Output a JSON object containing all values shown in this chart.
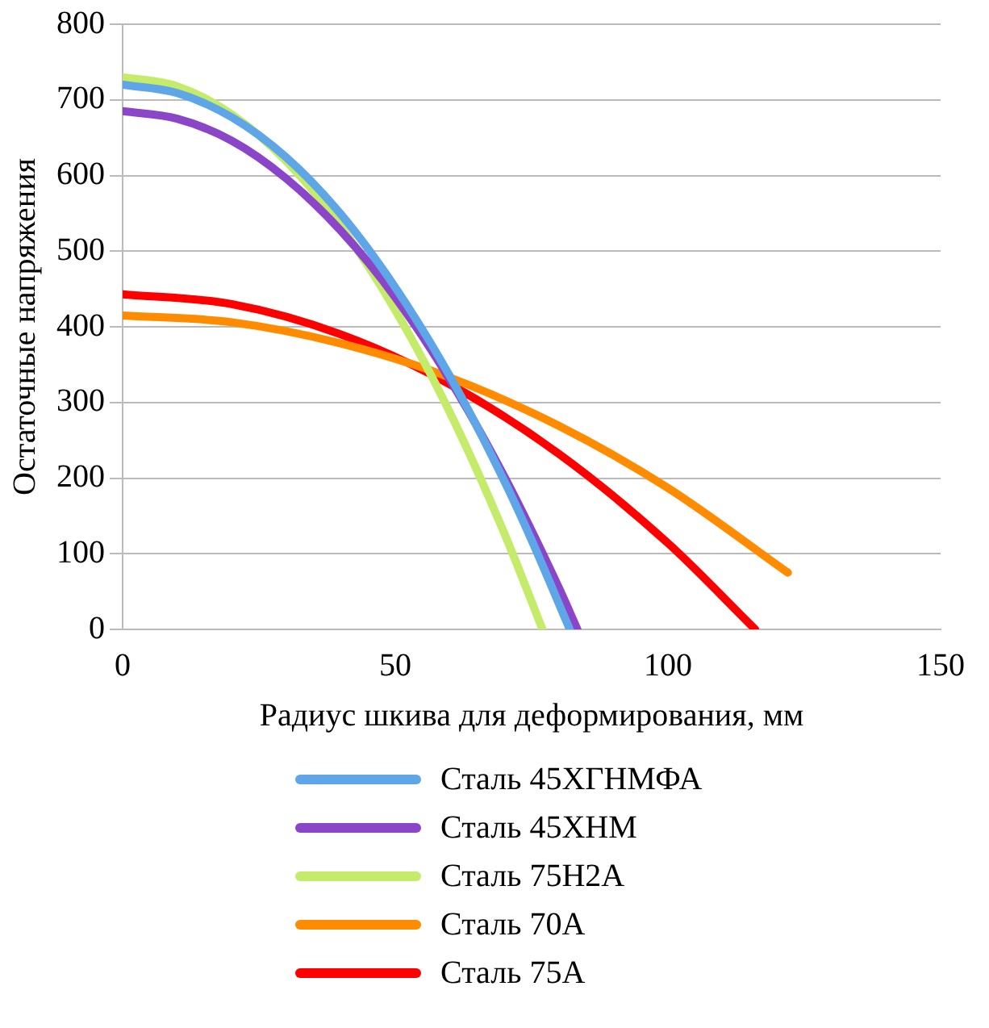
{
  "chart_data": {
    "type": "line",
    "xlabel": "Радиус шкива для деформирования, мм",
    "ylabel": "Остаточные напряжения",
    "xlim": [
      0,
      150
    ],
    "xticks": [
      0,
      50,
      100,
      150
    ],
    "ylim": [
      0,
      800
    ],
    "yticks": [
      0,
      100,
      200,
      300,
      400,
      500,
      600,
      700,
      800
    ],
    "grid": "y",
    "legend": "bottom",
    "marker": "none",
    "line_style": "solid",
    "series": [
      {
        "name": "Сталь 45ХГНМФА",
        "color": "#5ea6e8",
        "x": [
          0,
          10,
          20,
          30,
          40,
          50,
          60,
          70,
          75,
          82
        ],
        "values": [
          720,
          709,
          677,
          624,
          549,
          452,
          335,
          196,
          118,
          0
        ]
      },
      {
        "name": "Сталь 45ХНМ",
        "color": "#8a45c8",
        "x": [
          0,
          10,
          20,
          30,
          40,
          50,
          60,
          70,
          80,
          83.4
        ],
        "values": [
          685,
          675,
          646,
          596,
          527,
          439,
          330,
          202,
          55,
          0
        ]
      },
      {
        "name": "Сталь 75Н2А",
        "color": "#c4ec6a",
        "x": [
          0,
          10,
          20,
          30,
          40,
          50,
          60,
          70,
          77
        ],
        "values": [
          730,
          718,
          681,
          619,
          533,
          422,
          287,
          127,
          0
        ]
      },
      {
        "name": "Сталь 70А",
        "color": "#ff8c00",
        "x": [
          0,
          20,
          40,
          60,
          80,
          100,
          122
        ],
        "values": [
          415,
          406,
          378,
          333,
          269,
          187,
          75
        ]
      },
      {
        "name": "Сталь 75А",
        "color": "#ff0000",
        "x": [
          0,
          20,
          40,
          60,
          80,
          100,
          116
        ],
        "values": [
          443,
          430,
          390,
          324,
          232,
          114,
          0
        ]
      }
    ]
  }
}
